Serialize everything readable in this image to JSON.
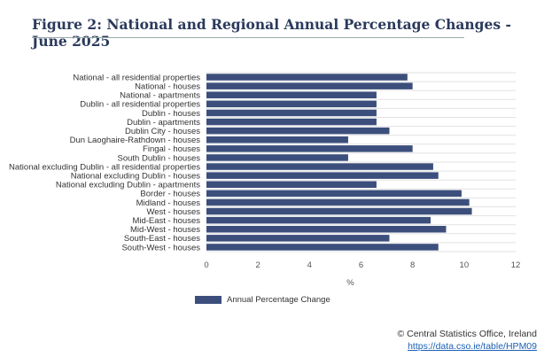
{
  "chart_data": {
    "type": "bar",
    "orientation": "horizontal",
    "title": "Figure 2: National and Regional Annual Percentage Changes - June 2025",
    "xlabel": "%",
    "xlim": [
      0,
      12
    ],
    "xticks": [
      "0",
      "2",
      "4",
      "6",
      "8",
      "10",
      "12"
    ],
    "grid": true,
    "legend_position": "bottom-left",
    "color": "#3c4f7c",
    "categories": [
      "National - all residential properties",
      "National - houses",
      "National - apartments",
      "Dublin - all residential properties",
      "Dublin - houses",
      "Dublin - apartments",
      "Dublin City - houses",
      "Dun Laoghaire-Rathdown - houses",
      "Fingal - houses",
      "South Dublin - houses",
      "National excluding Dublin - all residential properties",
      "National excluding Dublin - houses",
      "National excluding Dublin - apartments",
      "Border - houses",
      "Midland - houses",
      "West - houses",
      "Mid-East - houses",
      "Mid-West - houses",
      "South-East - houses",
      "South-West - houses"
    ],
    "series": [
      {
        "name": "Annual Percentage Change",
        "values": [
          7.8,
          8.0,
          6.6,
          6.6,
          6.6,
          6.6,
          7.1,
          5.5,
          8.0,
          5.5,
          8.8,
          9.0,
          6.6,
          9.9,
          10.2,
          10.3,
          8.7,
          9.3,
          7.1,
          9.0
        ]
      }
    ]
  },
  "credit": {
    "line1": "© Central Statistics Office, Ireland",
    "link": "https://data.cso.ie/table/HPM09"
  }
}
